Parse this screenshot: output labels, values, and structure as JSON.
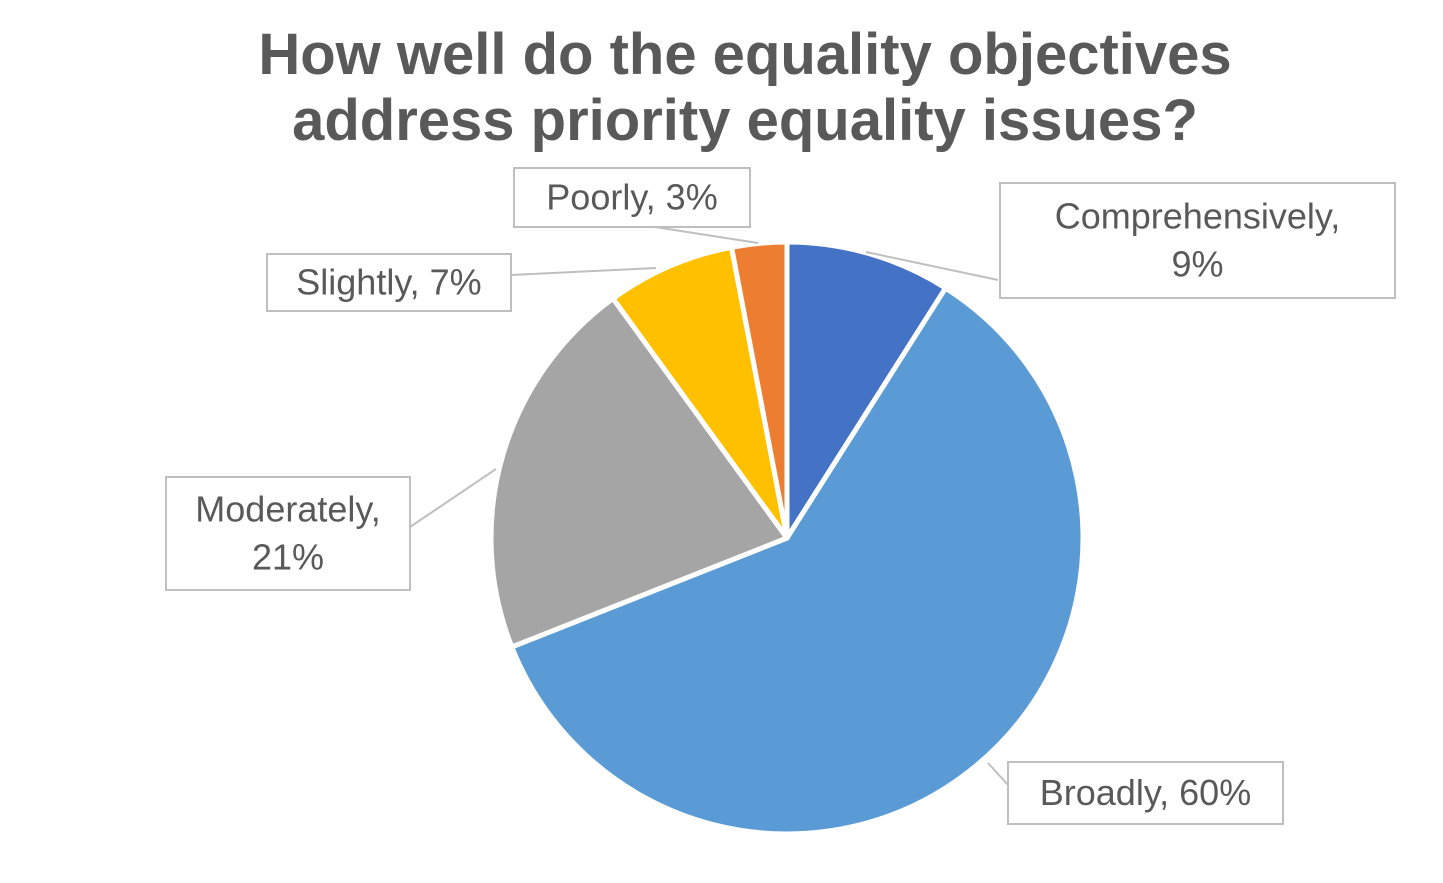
{
  "chart_data": {
    "type": "pie",
    "title": [
      "How well do the equality objectives",
      "address priority equality issues?"
    ],
    "start_angle_deg": 0,
    "direction": "clockwise",
    "slices": [
      {
        "category": "Comprehensively",
        "value": 9,
        "label": [
          "Comprehensively,",
          "9%"
        ],
        "color": "#4472C4"
      },
      {
        "category": "Broadly",
        "value": 60,
        "label": [
          "Broadly, 60%"
        ],
        "color": "#5B9BD5"
      },
      {
        "category": "Moderately",
        "value": 21,
        "label": [
          "Moderately,",
          "21%"
        ],
        "color": "#A5A5A5"
      },
      {
        "category": "Slightly",
        "value": 7,
        "label": [
          "Slightly, 7%"
        ],
        "color": "#FFC000"
      },
      {
        "category": "Poorly",
        "value": 3,
        "label": [
          "Poorly, 3%"
        ],
        "color": "#ED7D31"
      }
    ],
    "label_style": "callout boxes with leader lines"
  }
}
